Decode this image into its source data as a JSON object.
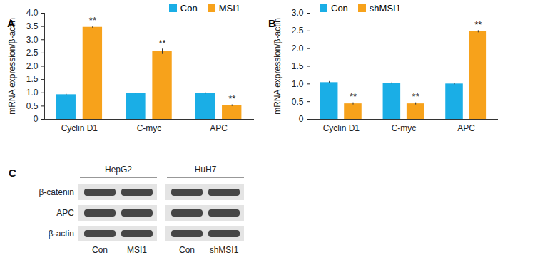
{
  "chart_data": [
    {
      "type": "bar",
      "title": "A",
      "y_label": "mRNA expression/β-actin",
      "categories": [
        "Cyclin D1",
        "C-myc",
        "APC"
      ],
      "series": [
        {
          "name": "Con",
          "color": "#1aaee6",
          "values": [
            0.93,
            0.97,
            0.98
          ],
          "errors": [
            0.02,
            0.02,
            0.02
          ]
        },
        {
          "name": "MSI1",
          "color": "#f7a21b",
          "values": [
            3.47,
            2.55,
            0.52
          ],
          "errors": [
            0.04,
            0.1,
            0.03
          ],
          "annotations": [
            "**",
            "**",
            "**"
          ]
        }
      ],
      "ylim": [
        0,
        4
      ],
      "yticks": [
        0,
        0.5,
        {
          "value": 1,
          "label": "1.0"
        },
        1.5,
        {
          "value": 2,
          "label": "2.0"
        },
        2.5,
        {
          "value": 3,
          "label": "3.0"
        },
        3.5,
        {
          "value": 4,
          "label": "4.0"
        }
      ],
      "legend": "top-right",
      "grid": false
    },
    {
      "type": "bar",
      "title": "B",
      "y_label": "mRNA expression/β-actin",
      "categories": [
        "Cyclin D1",
        "C-myc",
        "APC"
      ],
      "series": [
        {
          "name": "Con",
          "color": "#1aaee6",
          "values": [
            1.04,
            1.02,
            1.0
          ],
          "errors": [
            0.03,
            0.03,
            0.02
          ]
        },
        {
          "name": "shMSI1",
          "color": "#f7a21b",
          "values": [
            0.44,
            0.44,
            2.48
          ],
          "errors": [
            0.03,
            0.03,
            0.03
          ],
          "annotations": [
            "**",
            "**",
            "**"
          ]
        }
      ],
      "ylim": [
        0,
        3
      ],
      "yticks": [
        0,
        0.5,
        {
          "value": 1,
          "label": "1.0"
        },
        1.5,
        {
          "value": 2,
          "label": "2.0"
        },
        2.5,
        {
          "value": 3,
          "label": "3.0"
        }
      ],
      "legend": "top-left",
      "grid": false
    }
  ],
  "blot": {
    "title": "C",
    "cell_lines": [
      "HepG2",
      "HuH7"
    ],
    "rows": [
      "β-catenin",
      "APC",
      "β-actin"
    ],
    "lanes": [
      "Con",
      "MSI1",
      "Con",
      "shMSI1"
    ]
  }
}
